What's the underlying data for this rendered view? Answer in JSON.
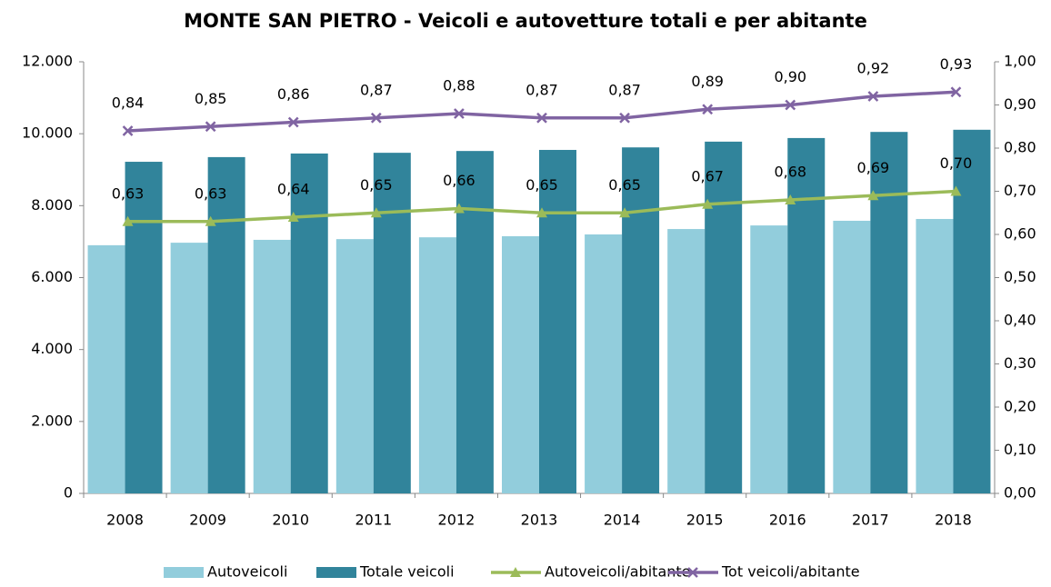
{
  "chart_data": {
    "type": "bar",
    "title": "MONTE SAN PIETRO - Veicoli e autovetture totali e per abitante",
    "categories": [
      "2008",
      "2009",
      "2010",
      "2011",
      "2012",
      "2013",
      "2014",
      "2015",
      "2016",
      "2017",
      "2018"
    ],
    "series": [
      {
        "name": "Autoveicoli",
        "type": "bar",
        "color": "#92cddc",
        "values": [
          6900,
          6970,
          7050,
          7070,
          7120,
          7150,
          7200,
          7350,
          7450,
          7580,
          7630
        ]
      },
      {
        "name": "Totale veicoli",
        "type": "bar",
        "color": "#31849b",
        "values": [
          9220,
          9350,
          9450,
          9470,
          9520,
          9550,
          9620,
          9780,
          9880,
          10050,
          10110
        ]
      },
      {
        "name": "Autoveicoli/abitante",
        "type": "line",
        "axis": "y2",
        "color": "#9bbb59",
        "marker": "triangle",
        "values": [
          0.63,
          0.63,
          0.64,
          0.65,
          0.66,
          0.65,
          0.65,
          0.67,
          0.68,
          0.69,
          0.7
        ],
        "value_labels": [
          "0,63",
          "0,63",
          "0,64",
          "0,65",
          "0,66",
          "0,65",
          "0,65",
          "0,67",
          "0,68",
          "0,69",
          "0,70"
        ]
      },
      {
        "name": "Tot veicoli/abitante",
        "type": "line",
        "axis": "y2",
        "color": "#8064a2",
        "marker": "x",
        "values": [
          0.84,
          0.85,
          0.86,
          0.87,
          0.88,
          0.87,
          0.87,
          0.89,
          0.9,
          0.92,
          0.93
        ],
        "value_labels": [
          "0,84",
          "0,85",
          "0,86",
          "0,87",
          "0,88",
          "0,87",
          "0,87",
          "0,89",
          "0,90",
          "0,92",
          "0,93"
        ]
      }
    ],
    "ylim": [
      0,
      12000
    ],
    "yticks": [
      0,
      {
        "value": 2000,
        "label": "2.000"
      },
      {
        "value": 4000,
        "label": "4.000"
      },
      {
        "value": 6000,
        "label": "6.000"
      },
      {
        "value": 8000,
        "label": "8.000"
      },
      {
        "value": 10000,
        "label": "10.000"
      },
      {
        "value": 12000,
        "label": "12.000"
      }
    ],
    "y2lim": [
      0,
      1
    ],
    "y2ticks": [
      {
        "value": 0,
        "label": "0,00"
      },
      {
        "value": 0.1,
        "label": "0,10"
      },
      {
        "value": 0.2,
        "label": "0,20"
      },
      {
        "value": 0.3,
        "label": "0,30"
      },
      {
        "value": 0.4,
        "label": "0,40"
      },
      {
        "value": 0.5,
        "label": "0,50"
      },
      {
        "value": 0.6,
        "label": "0,60"
      },
      {
        "value": 0.7,
        "label": "0,70"
      },
      {
        "value": 0.8,
        "label": "0,80"
      },
      {
        "value": 0.9,
        "label": "0,90"
      },
      {
        "value": 1,
        "label": "1,00"
      }
    ],
    "legend": "bottom"
  }
}
